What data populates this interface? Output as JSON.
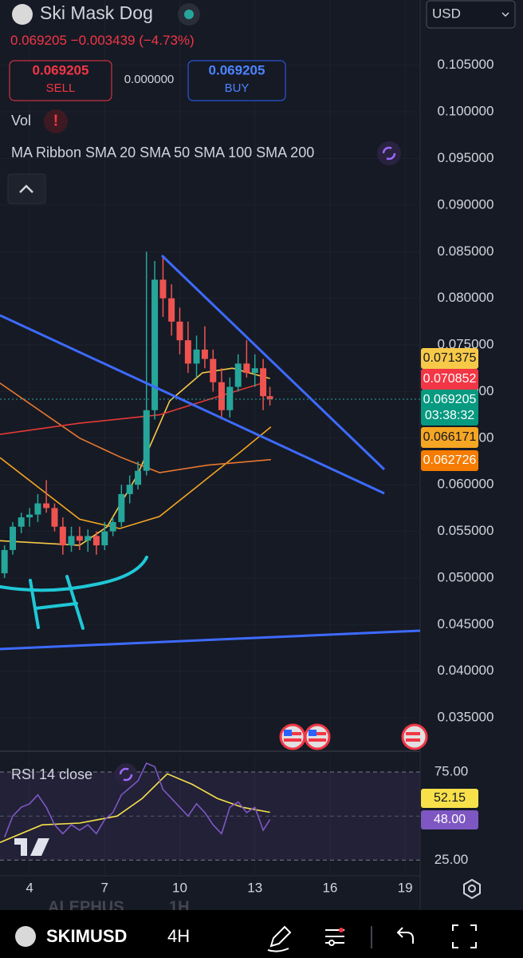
{
  "header": {
    "title": "Ski Mask Dog",
    "price": "0.069205",
    "change": "−0.003439",
    "change_pct": "(−4.73%)",
    "currency": "USD",
    "sell_price": "0.069205",
    "sell_label": "SELL",
    "spread": "0.000000",
    "buy_price": "0.069205",
    "buy_label": "BUY",
    "volume_label": "Vol",
    "indicator_label": "MA Ribbon SMA 20 SMA 50 SMA 100 SMA 200"
  },
  "chart_data": [
    {
      "type": "candlestick",
      "x": [
        3,
        3.33,
        3.67,
        4,
        4.33,
        4.67,
        5,
        5.33,
        5.67,
        6,
        6.33,
        6.67,
        7,
        7.33,
        7.67,
        8,
        8.33,
        8.67,
        9,
        9.33,
        9.67,
        10,
        10.33,
        10.67,
        11,
        11.33,
        11.67,
        12,
        12.33,
        12.67,
        13,
        13.33,
        13.6
      ],
      "open": [
        0.0505,
        0.053,
        0.0555,
        0.0565,
        0.0568,
        0.058,
        0.0575,
        0.0555,
        0.0535,
        0.0545,
        0.054,
        0.0545,
        0.0535,
        0.055,
        0.056,
        0.059,
        0.06,
        0.0615,
        0.068,
        0.082,
        0.08,
        0.0775,
        0.0755,
        0.073,
        0.0745,
        0.0735,
        0.071,
        0.068,
        0.0705,
        0.073,
        0.072,
        0.0725,
        0.0695
      ],
      "high": [
        0.0535,
        0.056,
        0.057,
        0.0575,
        0.059,
        0.0605,
        0.058,
        0.0565,
        0.0555,
        0.0555,
        0.0552,
        0.055,
        0.056,
        0.0565,
        0.06,
        0.061,
        0.0625,
        0.085,
        0.084,
        0.0845,
        0.0815,
        0.079,
        0.0775,
        0.076,
        0.077,
        0.0745,
        0.0725,
        0.0715,
        0.074,
        0.0755,
        0.074,
        0.0735,
        0.0705
      ],
      "low": [
        0.05,
        0.0525,
        0.0548,
        0.0555,
        0.056,
        0.057,
        0.055,
        0.0525,
        0.0528,
        0.053,
        0.0528,
        0.0525,
        0.053,
        0.0545,
        0.0555,
        0.058,
        0.0595,
        0.061,
        0.067,
        0.078,
        0.076,
        0.074,
        0.072,
        0.0715,
        0.0725,
        0.07,
        0.067,
        0.0672,
        0.07,
        0.0715,
        0.0705,
        0.068,
        0.0685
      ],
      "close": [
        0.053,
        0.0555,
        0.0565,
        0.0568,
        0.058,
        0.0575,
        0.0555,
        0.0535,
        0.0545,
        0.054,
        0.0545,
        0.0535,
        0.055,
        0.056,
        0.059,
        0.06,
        0.0615,
        0.068,
        0.082,
        0.08,
        0.0775,
        0.0755,
        0.073,
        0.0745,
        0.0735,
        0.071,
        0.068,
        0.0705,
        0.073,
        0.072,
        0.0725,
        0.0695,
        0.069205
      ],
      "up_color": "#26a69a",
      "down_color": "#ef5350",
      "overlays": [
        {
          "color": "#f7c948",
          "x": [
            2.82,
            6,
            7.1,
            8.3,
            9.6,
            10.9,
            12.1,
            13.6
          ],
          "values": [
            0.054,
            0.0535,
            0.0555,
            0.061,
            0.069,
            0.072,
            0.0725,
            0.0714
          ]
        },
        {
          "color": "#f5a623",
          "x": [
            2.82,
            6,
            7.6,
            9.19,
            10.78,
            12.37,
            13.64
          ],
          "values": [
            0.0629,
            0.0563,
            0.0553,
            0.0566,
            0.06,
            0.0634,
            0.0662
          ]
        },
        {
          "color": "#e8772e",
          "x": [
            2.82,
            6,
            7.6,
            9.19,
            11.1,
            13.64
          ],
          "values": [
            0.0709,
            0.065,
            0.063,
            0.0613,
            0.0621,
            0.0627
          ]
        },
        {
          "color": "#e53935",
          "x": [
            2.82,
            6,
            9.19,
            11.7,
            13.3
          ],
          "values": [
            0.0654,
            0.0666,
            0.0675,
            0.0696,
            0.0709
          ]
        }
      ],
      "price_labels": [
        {
          "label": "0.071375",
          "color": "#f7c948"
        },
        {
          "label": "0.070852",
          "color": "#f23645"
        },
        {
          "label": "0.069205",
          "color": "#089981",
          "countdown": "03:38:32"
        },
        {
          "label": "0.066171",
          "color": "#f5a623"
        },
        {
          "label": "0.062726",
          "color": "#f57c00"
        }
      ],
      "xlim": [
        2.82,
        19.6
      ],
      "xticks": [
        4,
        7,
        10,
        13,
        16,
        19
      ],
      "ylim": [
        0.0315,
        0.112
      ],
      "yticks": [
        {
          "value": 0.105,
          "label": "0.105000"
        },
        {
          "value": 0.1,
          "label": "0.100000"
        },
        {
          "value": 0.095,
          "label": "0.095000"
        },
        {
          "value": 0.09,
          "label": "0.090000"
        },
        {
          "value": 0.085,
          "label": "0.085000"
        },
        {
          "value": 0.08,
          "label": "0.080000"
        },
        {
          "value": 0.075,
          "label": "0.075000"
        },
        {
          "value": 0.07,
          "label": "0.070000"
        },
        {
          "value": 0.065,
          "label": "0.065000"
        },
        {
          "value": 0.06,
          "label": "0.060000"
        },
        {
          "value": 0.055,
          "label": "0.055000"
        },
        {
          "value": 0.05,
          "label": "0.050000"
        },
        {
          "value": 0.045,
          "label": "0.045000"
        },
        {
          "value": 0.04,
          "label": "0.040000"
        },
        {
          "value": 0.035,
          "label": "0.035000"
        }
      ],
      "grid": true
    },
    {
      "type": "line",
      "title": "RSI 14 close",
      "series": [
        {
          "color": "#7e57c2",
          "x": [
            3,
            3.33,
            3.67,
            4,
            4.33,
            4.67,
            5,
            5.33,
            5.67,
            6,
            6.33,
            6.67,
            7,
            7.33,
            7.67,
            8,
            8.33,
            8.67,
            9,
            9.33,
            9.67,
            10,
            10.33,
            10.67,
            11,
            11.33,
            11.67,
            12,
            12.33,
            12.67,
            13,
            13.33,
            13.6
          ],
          "values": [
            38,
            50,
            55,
            57,
            62,
            55,
            45,
            40,
            45,
            42,
            45,
            40,
            48,
            52,
            62,
            66,
            70,
            80,
            78,
            65,
            60,
            55,
            50,
            57,
            52,
            45,
            40,
            55,
            58,
            52,
            55,
            42,
            48
          ],
          "last_label": "48.00"
        },
        {
          "color": "#f7e04a",
          "x": [
            2.82,
            4.5,
            6,
            7.5,
            8.5,
            9.5,
            10.5,
            11.5,
            12.5,
            13.6
          ],
          "values": [
            35,
            45,
            46,
            50,
            60,
            74,
            68,
            60,
            55,
            52.15
          ],
          "last_label": "52.15"
        }
      ],
      "xlim": [
        2.82,
        19.6
      ],
      "ylim": [
        17,
        85
      ],
      "midline": 50,
      "yticks": [
        {
          "value": 75,
          "label": "75.00"
        },
        {
          "value": 25,
          "label": "25.00"
        }
      ]
    }
  ],
  "footer": {
    "faded_symbol": "ALEPHUS",
    "faded_interval": "1H",
    "symbol": "SKIMUSD",
    "interval": "4H"
  }
}
